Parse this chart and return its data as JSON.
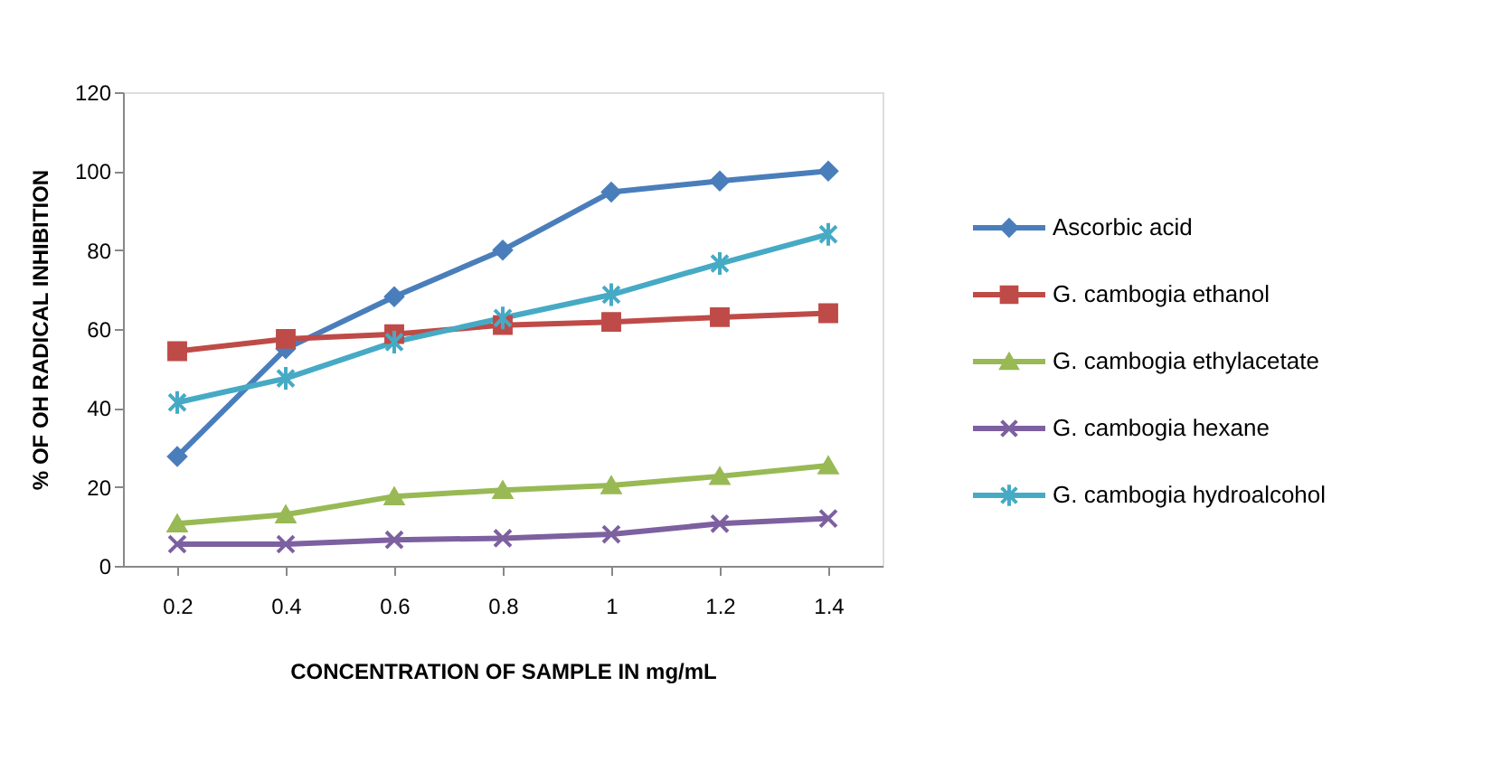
{
  "chart_data": {
    "type": "line",
    "xlabel": "CONCENTRATION OF SAMPLE IN mg/mL",
    "ylabel": "% OF OH RADICAL INHIBITION",
    "categories": [
      "0.2",
      "0.4",
      "0.6",
      "0.8",
      "1",
      "1.2",
      "1.4"
    ],
    "series": [
      {
        "name": "Ascorbic acid",
        "color": "#4a7ebb",
        "marker": "diamond",
        "values": [
          27.7,
          55,
          68.2,
          80,
          94.7,
          97.5,
          100
        ]
      },
      {
        "name": "G. cambogia ethanol",
        "color": "#be4b48",
        "marker": "square",
        "values": [
          54.4,
          57.5,
          58.7,
          61,
          61.8,
          63,
          64
        ]
      },
      {
        "name": "G. cambogia ethylacetate",
        "color": "#98b954",
        "marker": "triangle",
        "values": [
          10.7,
          13,
          17.6,
          19.2,
          20.4,
          22.7,
          25.4
        ]
      },
      {
        "name": "G. cambogia hexane",
        "color": "#7d60a0",
        "marker": "cross",
        "values": [
          5.5,
          5.5,
          6.6,
          7,
          8,
          10.7,
          12
        ]
      },
      {
        "name": "G. cambogia hydroalcohol",
        "color": "#46aac5",
        "marker": "cross",
        "values": [
          41.4,
          47.5,
          56.7,
          62.8,
          68.7,
          76.6,
          84
        ]
      }
    ],
    "ylim": [
      0,
      120
    ],
    "yticks": [
      0,
      20,
      40,
      60,
      80,
      100,
      120
    ],
    "grid": false,
    "legend": "right",
    "line_style": "solid"
  }
}
